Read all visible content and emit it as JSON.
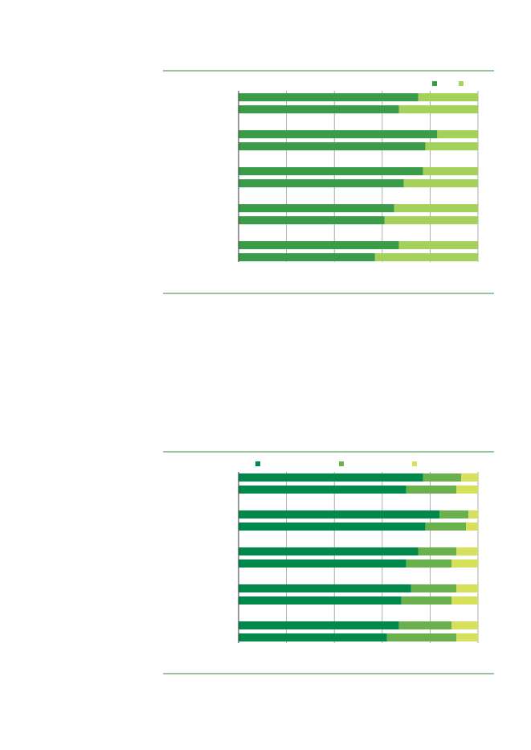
{
  "chart_data": [
    {
      "type": "bar",
      "orientation": "horizontal",
      "stacked": true,
      "categories": [
        null,
        null,
        null,
        null,
        null,
        null,
        null,
        null,
        null,
        null
      ],
      "series": [
        {
          "color": "#3a9c48",
          "values": [
            75,
            67,
            83,
            78,
            77,
            69,
            65,
            61,
            67,
            57
          ]
        },
        {
          "color": "#a3d15a",
          "values": [
            25,
            33,
            17,
            22,
            23,
            31,
            35,
            39,
            33,
            43
          ]
        }
      ],
      "xlim": [
        0,
        100
      ],
      "xticks": [
        0,
        20,
        40,
        60,
        80,
        100
      ],
      "grid": true
    },
    {
      "type": "bar",
      "orientation": "horizontal",
      "stacked": true,
      "categories": [
        null,
        null,
        null,
        null,
        null,
        null,
        null,
        null,
        null,
        null
      ],
      "series": [
        {
          "color": "#00894a",
          "values": [
            77,
            70,
            84,
            78,
            75,
            70,
            72,
            68,
            67,
            62
          ]
        },
        {
          "color": "#6ab04c",
          "values": [
            16,
            21,
            12,
            17,
            16,
            19,
            19,
            21,
            22,
            29
          ]
        },
        {
          "color": "#d6e05a",
          "values": [
            7,
            9,
            4,
            5,
            9,
            11,
            9,
            11,
            11,
            9
          ]
        }
      ],
      "xlim": [
        0,
        100
      ],
      "xticks": [
        0,
        20,
        40,
        60,
        80,
        100
      ],
      "grid": true
    }
  ]
}
